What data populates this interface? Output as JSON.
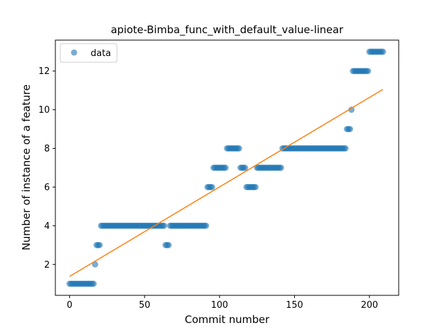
{
  "chart_data": {
    "type": "scatter",
    "title": "apiote-Bimba_func_with_default_value-linear",
    "xlabel": "Commit number",
    "ylabel": "Number of instance of a feature",
    "xlim": [
      -9.5,
      219.5
    ],
    "ylim": [
      0.4,
      13.6
    ],
    "xticks": [
      0,
      50,
      100,
      150,
      200
    ],
    "yticks": [
      2,
      4,
      6,
      8,
      10,
      12
    ],
    "grid": false,
    "legend": {
      "placement": "top-left",
      "entries": [
        "data"
      ]
    },
    "colors": {
      "data": "#1f77b4",
      "fit": "#ff7f0e"
    },
    "series": [
      {
        "name": "data",
        "kind": "points",
        "segments": [
          {
            "from": 0,
            "to": 16,
            "y": 1
          },
          {
            "from": 17,
            "to": 17,
            "y": 2
          },
          {
            "from": 18,
            "to": 20,
            "y": 3
          },
          {
            "from": 21,
            "to": 63,
            "y": 4
          },
          {
            "from": 64,
            "to": 66,
            "y": 3
          },
          {
            "from": 67,
            "to": 91,
            "y": 4
          },
          {
            "from": 92,
            "to": 95,
            "y": 6
          },
          {
            "from": 96,
            "to": 104,
            "y": 7
          },
          {
            "from": 105,
            "to": 113,
            "y": 8
          },
          {
            "from": 114,
            "to": 117,
            "y": 7
          },
          {
            "from": 118,
            "to": 124,
            "y": 6
          },
          {
            "from": 125,
            "to": 141,
            "y": 7
          },
          {
            "from": 142,
            "to": 184,
            "y": 8
          },
          {
            "from": 185,
            "to": 187,
            "y": 9
          },
          {
            "from": 188,
            "to": 188,
            "y": 10
          },
          {
            "from": 189,
            "to": 199,
            "y": 12
          },
          {
            "from": 200,
            "to": 209,
            "y": 13
          }
        ]
      },
      {
        "kind": "line",
        "x": [
          0,
          209
        ],
        "y": [
          1.38,
          11.05
        ]
      }
    ]
  }
}
